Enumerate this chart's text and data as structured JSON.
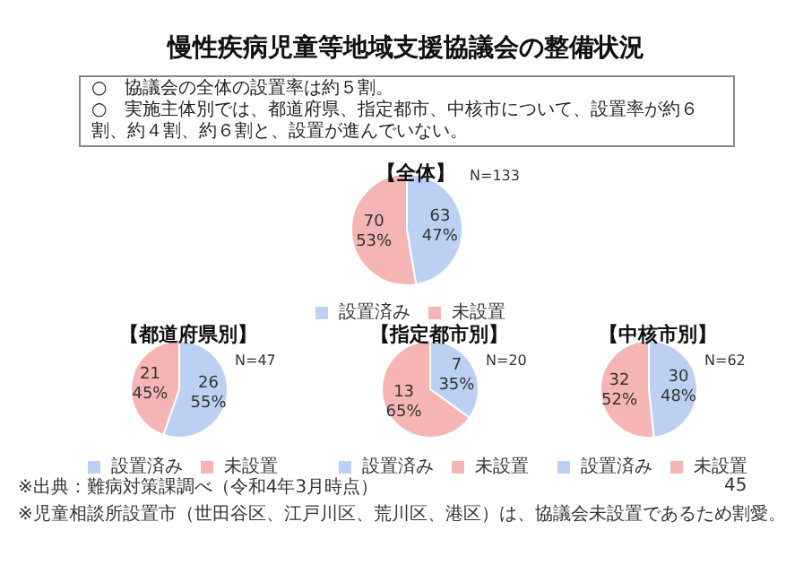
{
  "chart_data": [
    {
      "type": "other",
      "title": "慢性疾病児童等地域支援協議会の整備状況",
      "annotations": [
        "○　協議会の全体の設置率は約５割。",
        "○　実施主体別では、都道府県、指定都市、中核市について、設置率が約６割、約４割、約６割と、設置が進んでいない。"
      ]
    },
    {
      "type": "pie",
      "title": "【全体】",
      "categories": [
        "設置済み",
        "未設置"
      ],
      "values": [
        63,
        70
      ],
      "value_labels": [
        "63\n47%",
        "70\n53%"
      ],
      "colors": [
        "#bcd0f4",
        "#f6b5b5"
      ],
      "legend": "bottom",
      "annotations": [
        "N=133"
      ]
    },
    {
      "type": "pie",
      "title": "【都道府県別】",
      "categories": [
        "設置済み",
        "未設置"
      ],
      "values": [
        26,
        21
      ],
      "value_labels": [
        "26\n55%",
        "21\n45%"
      ],
      "colors": [
        "#bcd0f4",
        "#f6b5b5"
      ],
      "legend": "bottom",
      "annotations": [
        "N=47",
        "※出典：難病対策課調べ（令和4年3月時点）",
        "※児童相談所設置市（世田谷区、江戸川区、荒川区、港区）は、協議会未設置であるため割愛。"
      ]
    },
    {
      "type": "pie",
      "title": "【指定都市別】",
      "categories": [
        "設置済み",
        "未設置"
      ],
      "values": [
        7,
        13
      ],
      "value_labels": [
        "7\n35%",
        "13\n65%"
      ],
      "colors": [
        "#bcd0f4",
        "#f6b5b5"
      ],
      "legend": "bottom",
      "annotations": [
        "N=20"
      ]
    },
    {
      "type": "pie",
      "title": "【中核市別】",
      "categories": [
        "設置済み",
        "未設置"
      ],
      "values": [
        30,
        32
      ],
      "value_labels": [
        "30\n48%",
        "32\n52%"
      ],
      "colors": [
        "#bcd0f4",
        "#f6b5b5"
      ],
      "legend": "bottom",
      "annotations": [
        "N=62",
        "45"
      ]
    }
  ]
}
